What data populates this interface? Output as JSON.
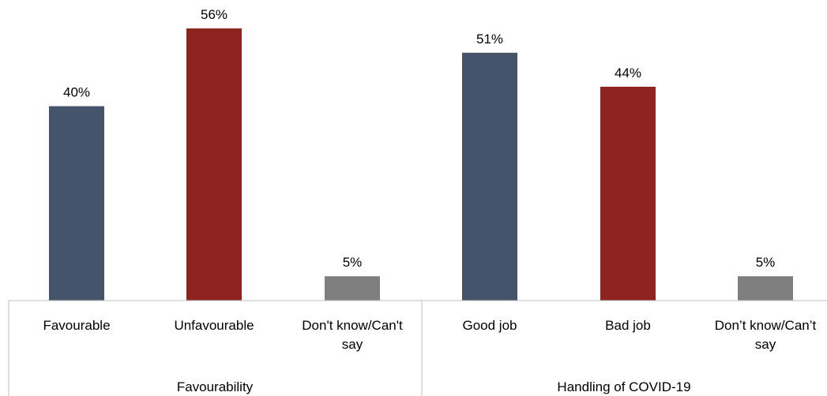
{
  "chart_data": {
    "type": "bar",
    "groups": [
      {
        "label": "Favourability",
        "categories": [
          [
            "Favourable"
          ],
          [
            "Unfavourable"
          ],
          [
            "Don't know/Can't",
            "say"
          ]
        ],
        "values": [
          40,
          56,
          5
        ],
        "value_labels": [
          "40%",
          "56%",
          "5%"
        ],
        "colors": [
          "#44546A",
          "#8E2420",
          "#7F7F7F"
        ]
      },
      {
        "label": "Handling of COVID-19",
        "categories": [
          [
            "Good job"
          ],
          [
            "Bad job"
          ],
          [
            "Don’t know/Can’t",
            "say"
          ]
        ],
        "values": [
          51,
          44,
          5
        ],
        "value_labels": [
          "51%",
          "44%",
          "5%"
        ],
        "colors": [
          "#44546A",
          "#8E2420",
          "#7F7F7F"
        ]
      }
    ],
    "ylim": [
      0,
      60
    ],
    "grid": false,
    "legend": "none"
  }
}
